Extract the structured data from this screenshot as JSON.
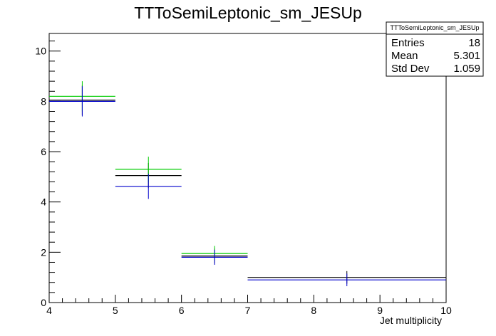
{
  "chart_data": {
    "type": "scatter",
    "title": "TTToSemiLeptonic_sm_JESUp",
    "xlabel": "Jet multiplicity",
    "ylabel": "",
    "xlim": [
      4,
      10
    ],
    "ylim": [
      0,
      10.7
    ],
    "x_ticks": [
      "4",
      "5",
      "6",
      "7",
      "8",
      "9",
      "10"
    ],
    "y_ticks": [
      "0",
      "2",
      "4",
      "6",
      "8",
      "10"
    ],
    "grid": false,
    "series": [
      {
        "color": "#000000",
        "points": [
          {
            "xlow": 4,
            "xhigh": 5,
            "x": 4.5,
            "y": 8.05,
            "err": 0.6
          },
          {
            "xlow": 5,
            "xhigh": 6,
            "x": 5.5,
            "y": 5.05,
            "err": 0.5
          },
          {
            "xlow": 6,
            "xhigh": 7,
            "x": 6.5,
            "y": 1.85,
            "err": 0.3
          },
          {
            "xlow": 7,
            "xhigh": 10,
            "x": 8.5,
            "y": 1.0,
            "err": 0.25
          }
        ]
      },
      {
        "color": "#00cc00",
        "points": [
          {
            "xlow": 4,
            "xhigh": 5,
            "x": 4.5,
            "y": 8.2,
            "err": 0.6
          },
          {
            "xlow": 5,
            "xhigh": 6,
            "x": 5.5,
            "y": 5.3,
            "err": 0.5
          },
          {
            "xlow": 6,
            "xhigh": 7,
            "x": 6.5,
            "y": 1.95,
            "err": 0.3
          }
        ]
      },
      {
        "color": "#0000cc",
        "points": [
          {
            "xlow": 4,
            "xhigh": 5,
            "x": 4.5,
            "y": 8.0,
            "err": 0.6
          },
          {
            "xlow": 5,
            "xhigh": 6,
            "x": 5.5,
            "y": 4.62,
            "err": 0.5
          },
          {
            "xlow": 6,
            "xhigh": 7,
            "x": 6.5,
            "y": 1.8,
            "err": 0.3
          },
          {
            "xlow": 7,
            "xhigh": 10,
            "x": 8.5,
            "y": 0.9,
            "err": 0.25
          }
        ]
      }
    ],
    "stats": {
      "title": "TTToSemiLeptonic_sm_JESUp",
      "rows": [
        {
          "label": "Entries",
          "value": "18"
        },
        {
          "label": "Mean",
          "value": "5.301"
        },
        {
          "label": "Std Dev",
          "value": "1.059"
        }
      ]
    }
  }
}
